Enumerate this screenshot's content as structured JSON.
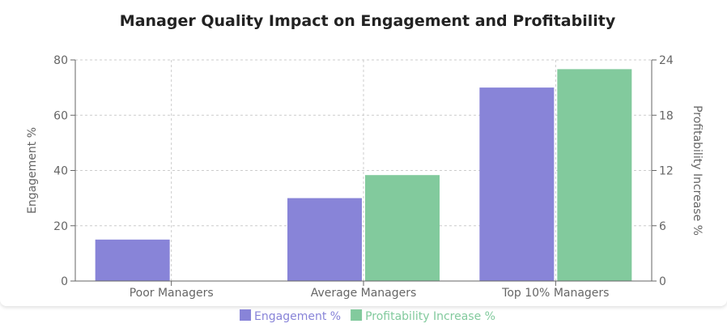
{
  "chart_data": {
    "type": "bar",
    "title": "Manager Quality Impact on Engagement and Profitability",
    "categories": [
      "Poor Managers",
      "Average Managers",
      "Top 10% Managers"
    ],
    "series": [
      {
        "name": "Engagement %",
        "axis": "left",
        "color": "#8884d8",
        "values": [
          15,
          30,
          70
        ]
      },
      {
        "name": "Profitability Increase %",
        "axis": "right",
        "color": "#82ca9d",
        "values": [
          0,
          11.5,
          23
        ]
      }
    ],
    "y_left": {
      "label": "Engagement %",
      "lim": [
        0,
        80
      ],
      "ticks": [
        0,
        20,
        40,
        60,
        80
      ]
    },
    "y_right": {
      "label": "Profitability Increase %",
      "lim": [
        0,
        24
      ],
      "ticks": [
        0,
        6,
        12,
        18,
        24
      ]
    },
    "grid": true,
    "legend": "bottom-center"
  }
}
